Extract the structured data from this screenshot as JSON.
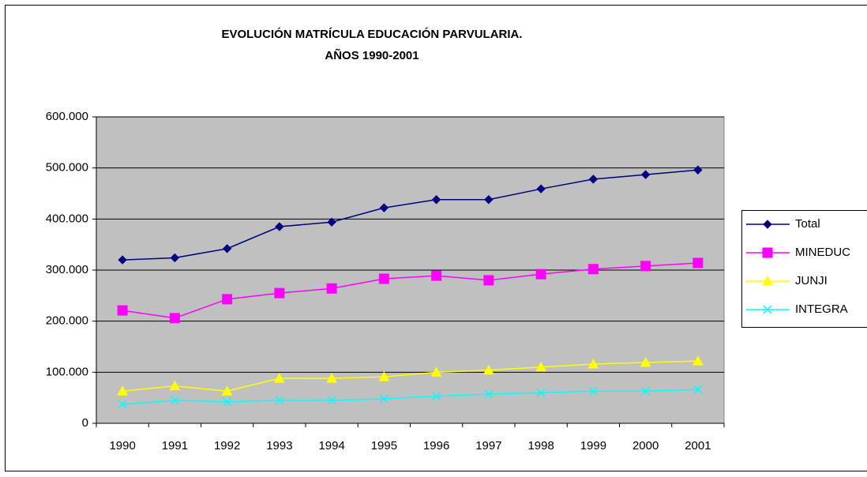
{
  "chart_data": {
    "type": "line",
    "title": "EVOLUCIÓN MATRÍCULA EDUCACIÓN PARVULARIA.",
    "subtitle": "AÑOS 1990-2001",
    "categories": [
      "1990",
      "1991",
      "1992",
      "1993",
      "1994",
      "1995",
      "1996",
      "1997",
      "1998",
      "1999",
      "2000",
      "2001"
    ],
    "series": [
      {
        "name": "Total",
        "color": "#000080",
        "marker": "diamond",
        "values": [
          320000,
          324000,
          342000,
          385000,
          394000,
          422000,
          438000,
          438000,
          459000,
          478000,
          487000,
          496000
        ]
      },
      {
        "name": "MINEDUC",
        "color": "#ff00ff",
        "marker": "square",
        "values": [
          221000,
          206000,
          243000,
          255000,
          264000,
          283000,
          289000,
          280000,
          292000,
          302000,
          308000,
          314000
        ]
      },
      {
        "name": "JUNJI",
        "color": "#ffff00",
        "marker": "triangle",
        "values": [
          63000,
          73000,
          63000,
          88000,
          88000,
          91000,
          100000,
          104000,
          110000,
          116000,
          119000,
          122000
        ]
      },
      {
        "name": "INTEGRA",
        "color": "#00ffff",
        "marker": "x",
        "values": [
          37000,
          45000,
          42000,
          45000,
          45000,
          48000,
          53000,
          57000,
          60000,
          63000,
          63000,
          66000
        ]
      }
    ],
    "ylim": [
      0,
      600000
    ],
    "yticks": [
      0,
      {
        "value": 100000,
        "label": "100.000"
      },
      {
        "value": 200000,
        "label": "200.000"
      },
      {
        "value": 300000,
        "label": "300.000"
      },
      {
        "value": 400000,
        "label": "400.000"
      },
      {
        "value": 500000,
        "label": "500.000"
      },
      {
        "value": 600000,
        "label": "600.000"
      }
    ],
    "grid": true,
    "legend": "right",
    "plot_background": "#c0c0c0"
  }
}
